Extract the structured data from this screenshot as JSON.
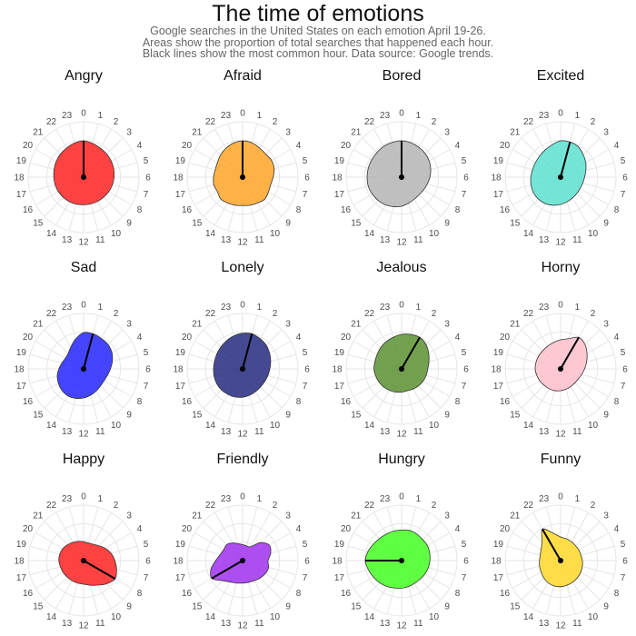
{
  "title": "The time of emotions",
  "subtitle": [
    "Google searches in the United States on each emotion April 19-26.",
    "Areas show the proportion of total searches that happened each hour.",
    "Black lines show the most common hour. Data source: Google trends."
  ],
  "chart_data": {
    "type": "radar",
    "hours": [
      "0",
      "1",
      "2",
      "3",
      "4",
      "5",
      "6",
      "7",
      "8",
      "9",
      "10",
      "11",
      "12",
      "13",
      "14",
      "15",
      "16",
      "17",
      "18",
      "19",
      "20",
      "21",
      "22",
      "23"
    ],
    "panels": [
      {
        "emotion": "Angry",
        "color": "#ff2222",
        "peak_hour": 0,
        "values": [
          1.0,
          0.96,
          0.92,
          0.9,
          0.88,
          0.86,
          0.84,
          0.82,
          0.8,
          0.78,
          0.77,
          0.76,
          0.76,
          0.77,
          0.78,
          0.79,
          0.8,
          0.81,
          0.82,
          0.84,
          0.87,
          0.9,
          0.93,
          0.97
        ]
      },
      {
        "emotion": "Afraid",
        "color": "#ffa528",
        "peak_hour": 0,
        "values": [
          1.0,
          0.98,
          0.93,
          0.9,
          0.92,
          0.9,
          0.84,
          0.8,
          0.82,
          0.86,
          0.82,
          0.8,
          0.78,
          0.8,
          0.82,
          0.85,
          0.8,
          0.82,
          0.8,
          0.78,
          0.8,
          0.86,
          0.92,
          0.97
        ]
      },
      {
        "emotion": "Bored",
        "color": "#b5b5b5",
        "peak_hour": 0,
        "values": [
          1.0,
          0.98,
          0.95,
          0.92,
          0.88,
          0.83,
          0.78,
          0.73,
          0.7,
          0.68,
          0.7,
          0.74,
          0.8,
          0.84,
          0.88,
          0.91,
          0.93,
          0.95,
          0.95,
          0.95,
          0.95,
          0.96,
          0.98,
          0.99
        ]
      },
      {
        "emotion": "Excited",
        "color": "#5ce0d0",
        "peak_hour": 1,
        "values": [
          1.0,
          1.0,
          0.97,
          0.88,
          0.8,
          0.72,
          0.66,
          0.63,
          0.62,
          0.63,
          0.66,
          0.7,
          0.75,
          0.8,
          0.84,
          0.86,
          0.86,
          0.84,
          0.82,
          0.8,
          0.8,
          0.82,
          0.86,
          0.92
        ]
      },
      {
        "emotion": "Sad",
        "color": "#2525ff",
        "peak_hour": 1,
        "values": [
          1.0,
          1.0,
          0.97,
          0.95,
          0.9,
          0.82,
          0.74,
          0.68,
          0.65,
          0.66,
          0.7,
          0.75,
          0.8,
          0.84,
          0.86,
          0.84,
          0.8,
          0.75,
          0.68,
          0.62,
          0.58,
          0.6,
          0.7,
          0.85
        ]
      },
      {
        "emotion": "Lonely",
        "color": "#252a80",
        "peak_hour": 1,
        "values": [
          0.98,
          1.0,
          0.96,
          0.92,
          0.86,
          0.8,
          0.75,
          0.72,
          0.7,
          0.7,
          0.72,
          0.75,
          0.78,
          0.8,
          0.81,
          0.82,
          0.82,
          0.81,
          0.8,
          0.8,
          0.82,
          0.85,
          0.89,
          0.94
        ]
      },
      {
        "emotion": "Jealous",
        "color": "#5a9030",
        "peak_hour": 2,
        "values": [
          0.95,
          0.98,
          1.0,
          0.95,
          0.86,
          0.78,
          0.72,
          0.7,
          0.68,
          0.66,
          0.64,
          0.62,
          0.64,
          0.66,
          0.68,
          0.7,
          0.72,
          0.74,
          0.76,
          0.76,
          0.78,
          0.82,
          0.86,
          0.9
        ]
      },
      {
        "emotion": "Horny",
        "color": "#ffc0cc",
        "peak_hour": 2,
        "values": [
          0.8,
          0.86,
          1.0,
          0.95,
          0.84,
          0.74,
          0.66,
          0.6,
          0.56,
          0.55,
          0.56,
          0.58,
          0.6,
          0.62,
          0.63,
          0.64,
          0.66,
          0.68,
          0.7,
          0.7,
          0.7,
          0.7,
          0.72,
          0.75
        ]
      },
      {
        "emotion": "Happy",
        "color": "#ff2222",
        "peak_hour": 8,
        "values": [
          0.52,
          0.5,
          0.52,
          0.58,
          0.68,
          0.78,
          0.86,
          0.94,
          1.0,
          0.9,
          0.78,
          0.7,
          0.65,
          0.64,
          0.64,
          0.64,
          0.65,
          0.66,
          0.68,
          0.68,
          0.66,
          0.62,
          0.58,
          0.55
        ]
      },
      {
        "emotion": "Friendly",
        "color": "#a030f0",
        "peak_hour": 16,
        "values": [
          0.44,
          0.42,
          0.44,
          0.7,
          0.85,
          0.8,
          0.7,
          0.74,
          0.72,
          0.68,
          0.64,
          0.62,
          0.62,
          0.64,
          0.68,
          0.78,
          0.98,
          0.9,
          0.74,
          0.64,
          0.6,
          0.62,
          0.56,
          0.48
        ]
      },
      {
        "emotion": "Hungry",
        "color": "#44ff22",
        "peak_hour": 18,
        "values": [
          0.84,
          0.86,
          0.84,
          0.82,
          0.82,
          0.8,
          0.78,
          0.76,
          0.74,
          0.72,
          0.72,
          0.74,
          0.76,
          0.78,
          0.82,
          0.86,
          0.9,
          0.95,
          1.0,
          0.96,
          0.9,
          0.86,
          0.84,
          0.84
        ]
      },
      {
        "emotion": "Funny",
        "color": "#ffd82a",
        "peak_hour": 22,
        "values": [
          0.65,
          0.62,
          0.6,
          0.58,
          0.58,
          0.58,
          0.6,
          0.62,
          0.64,
          0.66,
          0.68,
          0.7,
          0.72,
          0.72,
          0.7,
          0.66,
          0.62,
          0.6,
          0.58,
          0.58,
          0.62,
          0.72,
          1.0,
          0.78
        ]
      }
    ]
  }
}
